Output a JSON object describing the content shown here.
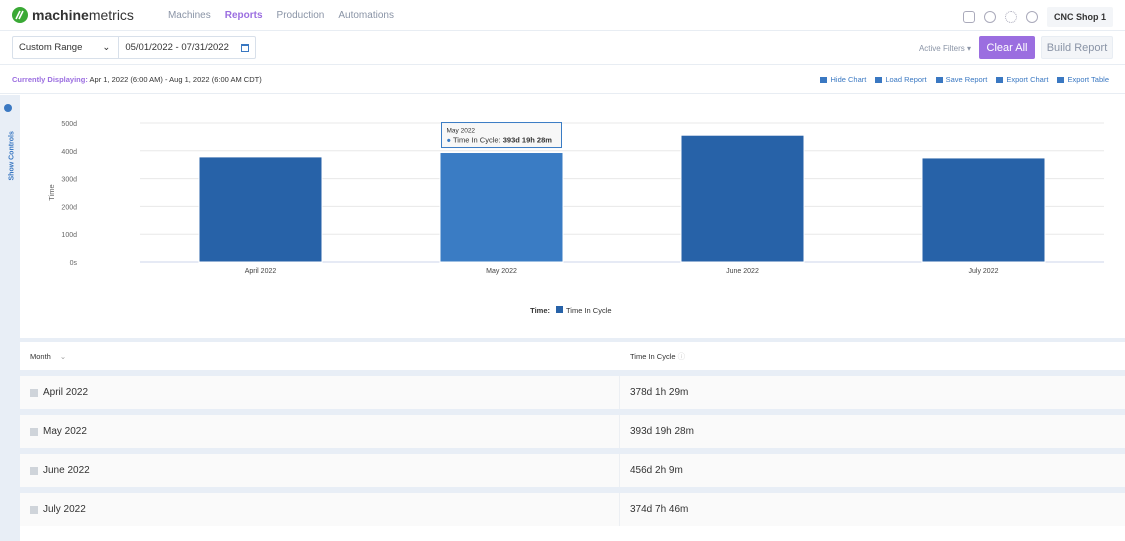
{
  "app": {
    "brand_bold": "machine",
    "brand_light": "metrics",
    "nav": [
      "Machines",
      "Reports",
      "Production",
      "Automations"
    ],
    "active_nav": "Reports",
    "shop": "CNC Shop 1"
  },
  "toolbar": {
    "range_select": "Custom Range",
    "date_range": "05/01/2022 - 07/31/2022",
    "active_filters": "Active Filters",
    "clear_all": "Clear All",
    "build_report": "Build Report"
  },
  "display": {
    "label": "Currently Displaying:",
    "value": "Apr 1, 2022 (6:00 AM) - Aug 1, 2022 (6:00 AM CDT)",
    "actions": [
      "Hide Chart",
      "Load Report",
      "Save Report",
      "Export Chart",
      "Export Table"
    ]
  },
  "side": {
    "label": "Show Controls"
  },
  "chart_data": {
    "type": "bar",
    "categories": [
      "April 2022",
      "May 2022",
      "June 2022",
      "July 2022"
    ],
    "series": [
      {
        "name": "Time In Cycle",
        "values": [
          378.06,
          393.81,
          456.09,
          374.32
        ],
        "color": "#2762a8"
      }
    ],
    "ylabel": "Time",
    "ylim": [
      0,
      500
    ],
    "yticks": [
      "0s",
      "100d",
      "200d",
      "300d",
      "400d",
      "500d"
    ],
    "grid": true,
    "legend_title": "Time:",
    "legend_placement": "bottom",
    "hover_color": "#3a7cc4",
    "tooltip": {
      "category": "May 2022",
      "title": "May 2022",
      "series": "Time In Cycle:",
      "value": "393d 19h 28m"
    }
  },
  "table": {
    "headers": [
      "Month",
      "Time In Cycle"
    ],
    "rows": [
      [
        "April 2022",
        "378d 1h 29m"
      ],
      [
        "May 2022",
        "393d 19h 28m"
      ],
      [
        "June 2022",
        "456d 2h 9m"
      ],
      [
        "July 2022",
        "374d 7h 46m"
      ]
    ]
  }
}
